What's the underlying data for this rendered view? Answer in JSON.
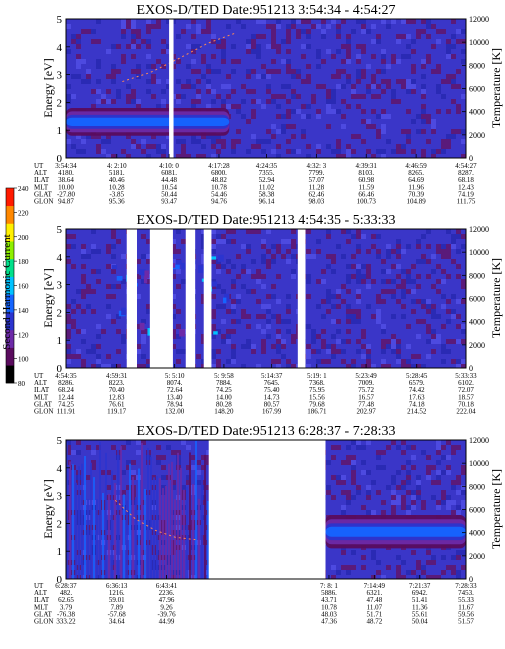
{
  "colorbar": {
    "label": "Second Harmonic Current",
    "ticks": [
      "80",
      "100",
      "120",
      "140",
      "160",
      "180",
      "200",
      "220",
      "240"
    ],
    "colors": [
      "#000000",
      "#5a0c5e",
      "#6d2aa8",
      "#2b34cf",
      "#1565ff",
      "#00c2ff",
      "#00e08a",
      "#8ef000",
      "#fff000",
      "#ff8800",
      "#ff1a00"
    ]
  },
  "chart_data": [
    {
      "type": "heatmap",
      "title": "EXOS-D/TED   Date:951213  3:54:34 - 4:54:27",
      "ylabel": "Energy [eV]",
      "ylabel_right": "Temperature [K]",
      "ylim": [
        0,
        5
      ],
      "yticks": [
        "0",
        "1",
        "2",
        "3",
        "4",
        "5"
      ],
      "ylim_right": [
        0,
        12000
      ],
      "yticks_right": [
        "0",
        "2000",
        "4000",
        "6000",
        "8000",
        "10000",
        "12000"
      ],
      "data_gaps_utc": [
        [
          "4:10:00",
          "4:10:40"
        ]
      ],
      "features": [
        {
          "name": "cold_band",
          "utc_range": [
            "3:54:34",
            "4:19:00"
          ],
          "energy_center_eV": 1.3,
          "energy_width_eV": 0.5,
          "level": 150
        },
        {
          "name": "temperature_trace",
          "utc_range": [
            "4:03:00",
            "4:20:00"
          ],
          "temperature_K": [
            6600,
            7400,
            8600,
            9900,
            10800
          ]
        }
      ],
      "orbit_table": {
        "row_labels": [
          "UT",
          "ALT",
          "ILAT",
          "MLT",
          "GLAT",
          "GLON"
        ],
        "columns": [
          [
            "3:54:34",
            "4180.",
            "38.64",
            "10.00",
            "-27.80",
            "94.87"
          ],
          [
            "4: 2:10",
            "5181.",
            "40.46",
            "10.28",
            "-3.85",
            "95.36"
          ],
          [
            "4:10: 0",
            "6081.",
            "44.48",
            "10.54",
            "50.44",
            "93.47"
          ],
          [
            "4:17:28",
            "6800.",
            "48.82",
            "10.78",
            "54.46",
            "94.76"
          ],
          [
            "4:24:35",
            "7355.",
            "52.94",
            "11.02",
            "58.38",
            "96.14"
          ],
          [
            "4:32: 3",
            "7799.",
            "57.07",
            "11.28",
            "62.46",
            "98.03"
          ],
          [
            "4:39:31",
            "8103.",
            "60.98",
            "11.59",
            "66.46",
            "100.73"
          ],
          [
            "4:46:59",
            "8265.",
            "64.69",
            "11.96",
            "70.39",
            "104.89"
          ],
          [
            "4:54:27",
            "8287.",
            "68.18",
            "12.43",
            "74.19",
            "111.75"
          ]
        ]
      }
    },
    {
      "type": "heatmap",
      "title": "EXOS-D/TED   Date:951213  4:54:35 - 5:33:33",
      "ylabel": "Energy [eV]",
      "ylabel_right": "Temperature [K]",
      "ylim": [
        0,
        5
      ],
      "yticks": [
        "0",
        "1",
        "2",
        "3",
        "4",
        "5"
      ],
      "ylim_right": [
        0,
        12000
      ],
      "yticks_right": [
        "0",
        "2000",
        "4000",
        "6000",
        "8000",
        "10000",
        "12000"
      ],
      "data_gaps_utc": [
        [
          "5: 0:30",
          "5: 1:30"
        ],
        [
          "5: 2:45",
          "5: 5: 0"
        ],
        [
          "5: 6:15",
          "5: 7:10"
        ],
        [
          "5: 8:00",
          "5: 8:45"
        ],
        [
          "5:17:10",
          "5:17:55"
        ]
      ],
      "features": [
        {
          "name": "noise_floor",
          "utc_range": [
            "4:54:35",
            "5:33:33"
          ],
          "level": 105
        },
        {
          "name": "bursts",
          "utc_range": [
            "4:59:00",
            "5:10:00"
          ],
          "energy_range_eV": [
            1.2,
            4.2
          ],
          "level": 150
        }
      ],
      "orbit_table": {
        "row_labels": [
          "UT",
          "ALT",
          "ILAT",
          "MLT",
          "GLAT",
          "GLON"
        ],
        "columns": [
          [
            "4:54:35",
            "8286.",
            "68.24",
            "12.44",
            "74.25",
            "111.91"
          ],
          [
            "4:59:31",
            "8223.",
            "70.40",
            "12.83",
            "76.61",
            "119.17"
          ],
          [
            "5: 5:10",
            "8074.",
            "72.64",
            "13.40",
            "78.94",
            "132.00"
          ],
          [
            "5: 9:58",
            "7884.",
            "74.25",
            "14.00",
            "80.28",
            "148.20"
          ],
          [
            "5:14:37",
            "7645.",
            "75.40",
            "14.73",
            "80.57",
            "167.99"
          ],
          [
            "5:19: 1",
            "7368.",
            "75.95",
            "15.56",
            "79.68",
            "186.71"
          ],
          [
            "5:23:49",
            "7009.",
            "75.72",
            "16.57",
            "77.48",
            "202.97"
          ],
          [
            "5:28:45",
            "6579.",
            "74.42",
            "17.63",
            "74.18",
            "214.52"
          ],
          [
            "5:33:33",
            "6102.",
            "72.07",
            "18.57",
            "70.18",
            "222.04"
          ]
        ]
      }
    },
    {
      "type": "heatmap",
      "title": "EXOS-D/TED   Date:951213  6:28:37 - 7:28:33",
      "ylabel": "Energy [eV]",
      "ylabel_right": "Temperature [K]",
      "ylim": [
        0,
        5
      ],
      "yticks": [
        "0",
        "1",
        "2",
        "3",
        "4",
        "5"
      ],
      "ylim_right": [
        0,
        12000
      ],
      "yticks_right": [
        "0",
        "2000",
        "4000",
        "6000",
        "8000",
        "10000",
        "12000"
      ],
      "data_gaps_utc": [
        [
          "6:50:00",
          "7: 7:30"
        ]
      ],
      "features": [
        {
          "name": "vertical_streaks",
          "utc_range": [
            "6:28:37",
            "6:50:00"
          ],
          "level": 140
        },
        {
          "name": "temperature_trace",
          "utc_range": [
            "6:36:00",
            "6:48:00"
          ],
          "temperature_K": [
            6800,
            5200,
            4200,
            3600,
            3400
          ]
        },
        {
          "name": "warm_band",
          "utc_range": [
            "7: 7:30",
            "7:28:33"
          ],
          "energy_center_eV": 1.7,
          "energy_width_eV": 0.6,
          "level": 150
        }
      ],
      "orbit_table": {
        "row_labels": [
          "UT",
          "ALT",
          "ILAT",
          "MLT",
          "GLAT",
          "GLON"
        ],
        "columns": [
          [
            "6:28:37",
            "482.",
            "62.65",
            "3.79",
            "-76.38",
            "333.22"
          ],
          [
            "6:36:13",
            "1216.",
            "59.01",
            "7.89",
            "-57.68",
            "34.64"
          ],
          [
            "6:43:41",
            "2236.",
            "47.96",
            "9.26",
            "-39.76",
            "44.99"
          ],
          [
            "7: 8: 1",
            "5886.",
            "43.71",
            "10.78",
            "48.03",
            "47.36"
          ],
          [
            "7:14:49",
            "6321.",
            "47.48",
            "11.07",
            "51.71",
            "48.72"
          ],
          [
            "7:21:37",
            "6942.",
            "51.41",
            "11.36",
            "55.61",
            "50.04"
          ],
          [
            "7:28:33",
            "7453.",
            "55.33",
            "11.67",
            "59.56",
            "51.57"
          ]
        ]
      }
    }
  ]
}
